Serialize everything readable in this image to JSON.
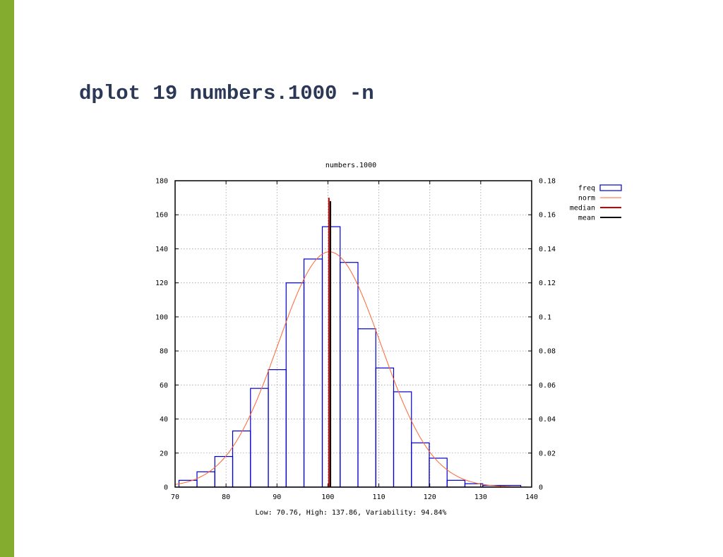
{
  "slide": {
    "title": "dplot 19 numbers.1000 -n",
    "accent_color": "#84ad2f",
    "title_color": "#2b3856"
  },
  "chart_data": {
    "type": "bar",
    "title": "numbers.1000",
    "subtitle": "Low: 70.76, High: 137.86, Variability: 94.84%",
    "bin_width": 3.5,
    "bins": [
      {
        "x0": 70.76,
        "x1": 74.3,
        "count": 4
      },
      {
        "x0": 74.3,
        "x1": 77.8,
        "count": 9
      },
      {
        "x0": 77.8,
        "x1": 81.3,
        "count": 18
      },
      {
        "x0": 81.3,
        "x1": 84.8,
        "count": 33
      },
      {
        "x0": 84.8,
        "x1": 88.3,
        "count": 58
      },
      {
        "x0": 88.3,
        "x1": 91.8,
        "count": 69
      },
      {
        "x0": 91.8,
        "x1": 95.3,
        "count": 120
      },
      {
        "x0": 95.3,
        "x1": 98.9,
        "count": 134
      },
      {
        "x0": 98.9,
        "x1": 102.4,
        "count": 153
      },
      {
        "x0": 102.4,
        "x1": 105.9,
        "count": 132
      },
      {
        "x0": 105.9,
        "x1": 109.4,
        "count": 93
      },
      {
        "x0": 109.4,
        "x1": 112.9,
        "count": 70
      },
      {
        "x0": 112.9,
        "x1": 116.4,
        "count": 56
      },
      {
        "x0": 116.4,
        "x1": 119.9,
        "count": 26
      },
      {
        "x0": 119.9,
        "x1": 123.4,
        "count": 17
      },
      {
        "x0": 123.4,
        "x1": 126.9,
        "count": 4
      },
      {
        "x0": 126.9,
        "x1": 130.4,
        "count": 2
      },
      {
        "x0": 130.4,
        "x1": 133.9,
        "count": 1
      },
      {
        "x0": 133.9,
        "x1": 137.86,
        "count": 1
      }
    ],
    "norm": {
      "mean": 100.3,
      "sd": 10.1,
      "color": "#ff6633"
    },
    "median": {
      "value": 100.2,
      "color": "#cc0000"
    },
    "mean": {
      "value": 100.5,
      "color": "#000000"
    },
    "freq_color": "#0000cc",
    "xlim": [
      70,
      140
    ],
    "xticks": [
      70,
      80,
      90,
      100,
      110,
      120,
      130,
      140
    ],
    "ylim": [
      0,
      180
    ],
    "yticks": [
      0,
      20,
      40,
      60,
      80,
      100,
      120,
      140,
      160,
      180
    ],
    "y2lim": [
      0,
      0.18
    ],
    "y2ticks": [
      "0",
      "0.02",
      "0.04",
      "0.06",
      "0.08",
      "0.1",
      "0.12",
      "0.14",
      "0.16",
      "0.18"
    ],
    "grid": true,
    "legend_position": "right-top",
    "legend": [
      "freq",
      "norm",
      "median",
      "mean"
    ]
  }
}
